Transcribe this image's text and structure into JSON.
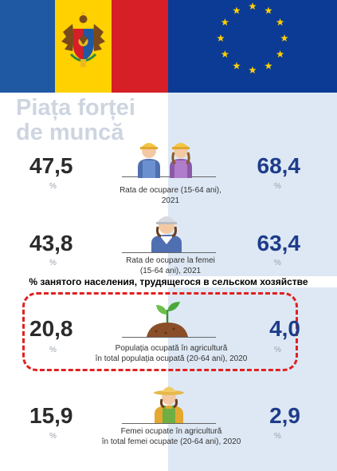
{
  "title_line1": "Piața forței",
  "title_line2": "de muncă",
  "percent_sign": "%",
  "colors": {
    "md_blue": "#1f58a3",
    "md_yellow": "#ffd100",
    "md_red": "#d61f26",
    "eu_blue": "#0c3b95",
    "eu_star": "#ffd100",
    "dash_red": "#e02020"
  },
  "rows": [
    {
      "left_value": "47,5",
      "right_value": "68,4",
      "caption": "Rata de ocupare (15-64 ani), 2021",
      "icon": "two-workers-icon"
    },
    {
      "left_value": "43,8",
      "right_value": "63,4",
      "caption_line1": "Rata de ocupare la femei",
      "caption_line2": "(15-64 ani), 2021",
      "icon": "female-worker-icon"
    },
    {
      "left_value": "20,8",
      "right_value": "4,0",
      "caption_line1": "Populația ocupată în agricultură",
      "caption_line2": "în total populația ocupată (20-64 ani), 2020",
      "icon": "seedling-icon"
    },
    {
      "left_value": "15,9",
      "right_value": "2,9",
      "caption_line1": "Femei ocupate în agricultură",
      "caption_line2": "în total femei ocupate (20-64 ani), 2020",
      "icon": "farmer-woman-icon"
    }
  ],
  "overlay_text": "% занятого населения, трудящегося в сельском хозяйстве"
}
